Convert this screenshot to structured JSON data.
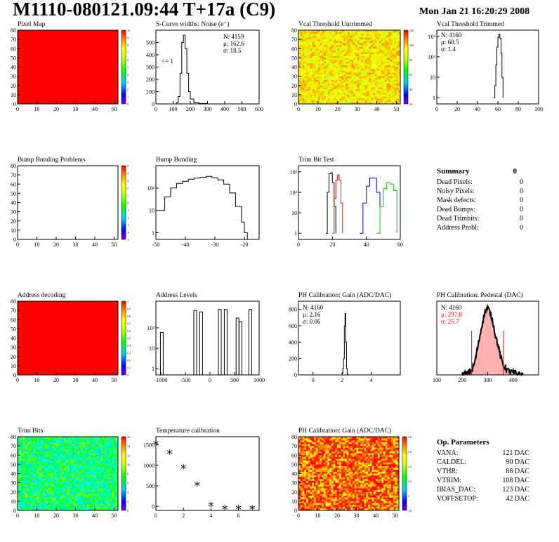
{
  "header": {
    "title": "M1110-080121.09:44 T+17a (C9)",
    "date": "Mon Jan 21 16:20:29 2008"
  },
  "colors": {
    "red": "#ff0000",
    "black": "#000000",
    "blue": "#0000cc",
    "green": "#00cc00",
    "pink": "#ffb0b0"
  },
  "chart_data": [
    {
      "id": "pixel_map",
      "type": "heatmap",
      "title": "Pixel Map",
      "xlim": [
        0,
        52
      ],
      "ylim": [
        0,
        80
      ],
      "xticks": [
        "0",
        "10",
        "20",
        "30",
        "40",
        "50"
      ],
      "yticks": [
        "0",
        "10",
        "20",
        "30",
        "40",
        "50",
        "60",
        "70",
        "80"
      ],
      "palette": "uniform",
      "uniform_value": 10,
      "colorbar": {
        "ticks": [
          "0",
          "1",
          "2",
          "3",
          "4",
          "5",
          "6",
          "7",
          "8",
          "9",
          "10"
        ]
      }
    },
    {
      "id": "scurve",
      "type": "line",
      "title": "S-Curve widths: Noise (e⁻)",
      "xlim": [
        0,
        600
      ],
      "ylim": [
        0,
        600
      ],
      "xticks": [
        "0",
        "100",
        "200",
        "300",
        "400",
        "500",
        "600"
      ],
      "yticks": [
        "0",
        "100",
        "200",
        "300",
        "400",
        "500"
      ],
      "stats": [
        "N: 4159",
        "μ: 162.6",
        "σ: 18.5"
      ],
      "annotation": "<= 1",
      "x": [
        100,
        120,
        130,
        140,
        150,
        160,
        170,
        180,
        190,
        200,
        220,
        250,
        300
      ],
      "y": [
        0,
        10,
        60,
        250,
        500,
        560,
        450,
        250,
        100,
        40,
        10,
        3,
        0
      ]
    },
    {
      "id": "vcal_untrimmed",
      "type": "heatmap",
      "title": "Vcal Threshold Untrimmed",
      "xlim": [
        0,
        52
      ],
      "ylim": [
        0,
        80
      ],
      "xticks": [
        "0",
        "10",
        "20",
        "30",
        "40",
        "50"
      ],
      "yticks": [
        "0",
        "10",
        "20",
        "30",
        "40",
        "50",
        "60",
        "70",
        "80"
      ],
      "palette": "yellow-orange",
      "colorbar": {
        "ticks": [
          "20",
          "40",
          "60",
          "80",
          "100",
          "120"
        ]
      }
    },
    {
      "id": "vcal_trimmed",
      "type": "line",
      "title": "Vcal Threshold Trimmed",
      "log_y": true,
      "xlim": [
        0,
        100
      ],
      "ylim_log": [
        0.5,
        2000
      ],
      "xticks": [
        "0",
        "20",
        "40",
        "60",
        "80",
        "100"
      ],
      "yticks": [
        "1",
        "10",
        "10²",
        "10³"
      ],
      "stats": [
        "N: 4160",
        "μ: 60.5",
        "σ: 1.4"
      ],
      "x": [
        56,
        57,
        58,
        59,
        60,
        61,
        62,
        63,
        64,
        65
      ],
      "y": [
        1,
        4,
        40,
        300,
        900,
        1300,
        800,
        150,
        10,
        1
      ]
    },
    {
      "id": "bump_problems",
      "type": "heatmap",
      "title": "Bump Bonding Problems",
      "xlim": [
        0,
        52
      ],
      "ylim": [
        0,
        80
      ],
      "xticks": [
        "0",
        "10",
        "20",
        "30",
        "40",
        "50"
      ],
      "yticks": [
        "0",
        "10",
        "20",
        "30",
        "40",
        "50",
        "60",
        "70",
        "80"
      ],
      "palette": "empty",
      "colorbar": {
        "ticks": [
          "-5",
          "-4",
          "-3",
          "-2",
          "-1",
          "0",
          "1",
          "2",
          "3",
          "4",
          "5"
        ]
      }
    },
    {
      "id": "bump_bonding",
      "type": "line",
      "title": "Bump Bonding",
      "log_y": true,
      "xlim": [
        -50,
        -15
      ],
      "ylim_log": [
        0.5,
        1000
      ],
      "xticks": [
        "-50",
        "-40",
        "-30",
        "-20"
      ],
      "yticks": [
        "1",
        "10",
        "10²"
      ],
      "x": [
        -49,
        -47,
        -45,
        -43,
        -41,
        -39,
        -37,
        -35,
        -33,
        -31,
        -29,
        -27,
        -25,
        -23,
        -21,
        -20,
        -19
      ],
      "y": [
        10,
        40,
        100,
        160,
        200,
        250,
        280,
        300,
        330,
        290,
        230,
        150,
        60,
        15,
        3,
        1,
        0.5
      ]
    },
    {
      "id": "trim_bit_test",
      "type": "line",
      "title": "Trim Bit Test",
      "log_y": true,
      "xlim": [
        0,
        60
      ],
      "ylim_log": [
        0.5,
        2000
      ],
      "xticks": [
        "0",
        "20",
        "40",
        "60"
      ],
      "yticks": [
        "1",
        "10",
        "10²",
        "10³"
      ],
      "series": [
        {
          "color": "black",
          "x": [
            16,
            17,
            18,
            19,
            20,
            21,
            22
          ],
          "y": [
            1,
            100,
            800,
            900,
            300,
            20,
            1
          ]
        },
        {
          "color": "red",
          "x": [
            20,
            21,
            22,
            23,
            24,
            25,
            26
          ],
          "y": [
            1,
            50,
            400,
            700,
            400,
            30,
            1
          ]
        },
        {
          "color": "blue",
          "x": [
            36,
            38,
            40,
            42,
            44,
            46,
            48
          ],
          "y": [
            1,
            30,
            200,
            500,
            500,
            100,
            1
          ]
        },
        {
          "color": "green",
          "x": [
            46,
            48,
            50,
            52,
            54,
            56,
            58
          ],
          "y": [
            1,
            20,
            150,
            300,
            250,
            120,
            1
          ]
        }
      ]
    },
    {
      "id": "address_decoding",
      "type": "heatmap",
      "title": "Address decoding",
      "xlim": [
        0,
        52
      ],
      "ylim": [
        0,
        80
      ],
      "xticks": [
        "0",
        "10",
        "20",
        "30",
        "40",
        "50"
      ],
      "yticks": [
        "0",
        "10",
        "20",
        "30",
        "40",
        "50",
        "60",
        "70",
        "80"
      ],
      "palette": "uniform",
      "uniform_value": 1,
      "colorbar": {
        "ticks": [
          "0",
          "0.1",
          "0.2",
          "0.3",
          "0.4",
          "0.5",
          "0.6",
          "0.7",
          "0.8",
          "0.9",
          "1"
        ]
      }
    },
    {
      "id": "address_levels",
      "type": "line",
      "title": "Address Levels",
      "log_y": true,
      "xlim": [
        -1100,
        1000
      ],
      "ylim_log": [
        0.5,
        2000
      ],
      "xticks": [
        "-1000",
        "-500",
        "0",
        "500",
        "1000"
      ],
      "yticks": [
        "1",
        "10",
        "10²"
      ],
      "peaks": [
        {
          "x": -980,
          "y": 60
        },
        {
          "x": -300,
          "y": 700
        },
        {
          "x": -180,
          "y": 600
        },
        {
          "x": 200,
          "y": 800
        },
        {
          "x": 320,
          "y": 800
        },
        {
          "x": 560,
          "y": 300
        },
        {
          "x": 620,
          "y": 200
        },
        {
          "x": 820,
          "y": 800
        }
      ]
    },
    {
      "id": "ph_gain",
      "type": "line",
      "title": "PH Calibration: Gain (ADC/DAC)",
      "xlim": [
        -1,
        6
      ],
      "ylim": [
        0,
        900
      ],
      "xticks": [
        "0",
        "2",
        "4"
      ],
      "yticks": [
        "0",
        "200",
        "400",
        "600",
        "800"
      ],
      "stats": [
        "N: 4160",
        "μ: 2.16",
        "σ: 0.06"
      ],
      "x": [
        1.95,
        2.0,
        2.05,
        2.1,
        2.15,
        2.2,
        2.25,
        2.3,
        2.35,
        2.4
      ],
      "y": [
        0,
        20,
        80,
        200,
        600,
        750,
        400,
        80,
        10,
        0
      ]
    },
    {
      "id": "ph_pedestal",
      "type": "line",
      "title": "PH Calibration: Pedestal (DAC)",
      "xlim": [
        100,
        500
      ],
      "ylim": [
        0,
        110
      ],
      "xticks": [
        "100",
        "200",
        "300",
        "400"
      ],
      "yticks": [],
      "stats": [
        "N: 4160",
        "μ: 297.8",
        "σ: 25.7"
      ],
      "cut_lines": [
        237,
        362
      ],
      "x": [
        200,
        220,
        240,
        250,
        260,
        270,
        280,
        290,
        300,
        310,
        320,
        330,
        340,
        350,
        360,
        380,
        400,
        420,
        440
      ],
      "y": [
        0,
        2,
        8,
        20,
        40,
        60,
        80,
        95,
        100,
        92,
        80,
        60,
        45,
        28,
        15,
        6,
        3,
        1,
        0
      ]
    },
    {
      "id": "trim_bits",
      "type": "heatmap",
      "title": "Trim Bits",
      "xlim": [
        0,
        52
      ],
      "ylim": [
        0,
        80
      ],
      "xticks": [
        "0",
        "10",
        "20",
        "30",
        "40",
        "50"
      ],
      "yticks": [
        "0",
        "10",
        "20",
        "30",
        "40",
        "50",
        "60",
        "70",
        "80"
      ],
      "palette": "cyan-green",
      "colorbar": {
        "ticks": [
          "0",
          "2",
          "4",
          "6",
          "8",
          "10",
          "12",
          "14",
          "16"
        ]
      }
    },
    {
      "id": "temperature",
      "type": "scatter",
      "title": "Temperature calibration",
      "xlim": [
        0,
        7.5
      ],
      "ylim": [
        -100,
        1700
      ],
      "xticks": [
        "0",
        "2",
        "4",
        "6"
      ],
      "yticks": [
        "0",
        "500",
        "1000",
        "1500"
      ],
      "x": [
        0,
        1,
        2,
        3,
        4,
        5,
        6,
        7
      ],
      "y": [
        1560,
        1340,
        980,
        560,
        60,
        -10,
        -10,
        -10
      ]
    },
    {
      "id": "ph_gain_map",
      "type": "heatmap",
      "title": "PH Calibration: Gain (ADC/DAC)",
      "xlim": [
        0,
        52
      ],
      "ylim": [
        0,
        80
      ],
      "xticks": [
        "0",
        "10",
        "20",
        "30",
        "40",
        "50"
      ],
      "yticks": [
        "0",
        "10",
        "20",
        "30",
        "40",
        "50",
        "60",
        "70",
        "80"
      ],
      "palette": "red-orange",
      "colorbar": {
        "ticks": [
          "1.8",
          "2",
          "2.2",
          "2.4",
          "2.6",
          "2.8"
        ]
      }
    }
  ],
  "summary": {
    "title": "Summary",
    "total": "0",
    "rows": [
      {
        "label": "Dead Pixels:",
        "value": "0"
      },
      {
        "label": "Noisy Pixels:",
        "value": "0"
      },
      {
        "label": "Mask defects:",
        "value": "0"
      },
      {
        "label": "Dead Bumps:",
        "value": "0"
      },
      {
        "label": "Dead Trimbits:",
        "value": "0"
      },
      {
        "label": "Address Probl:",
        "value": "0"
      }
    ]
  },
  "op_params": {
    "title": "Op. Parameters",
    "rows": [
      {
        "label": "VANA:",
        "value": "121 DAC"
      },
      {
        "label": "CALDEL:",
        "value": "90 DAC"
      },
      {
        "label": "VTHR:",
        "value": "88 DAC"
      },
      {
        "label": "VTRIM:",
        "value": "108 DAC"
      },
      {
        "label": "IBIAS_DAC:",
        "value": "123 DAC"
      },
      {
        "label": "VOFFSETOP:",
        "value": "42 DAC"
      }
    ]
  }
}
